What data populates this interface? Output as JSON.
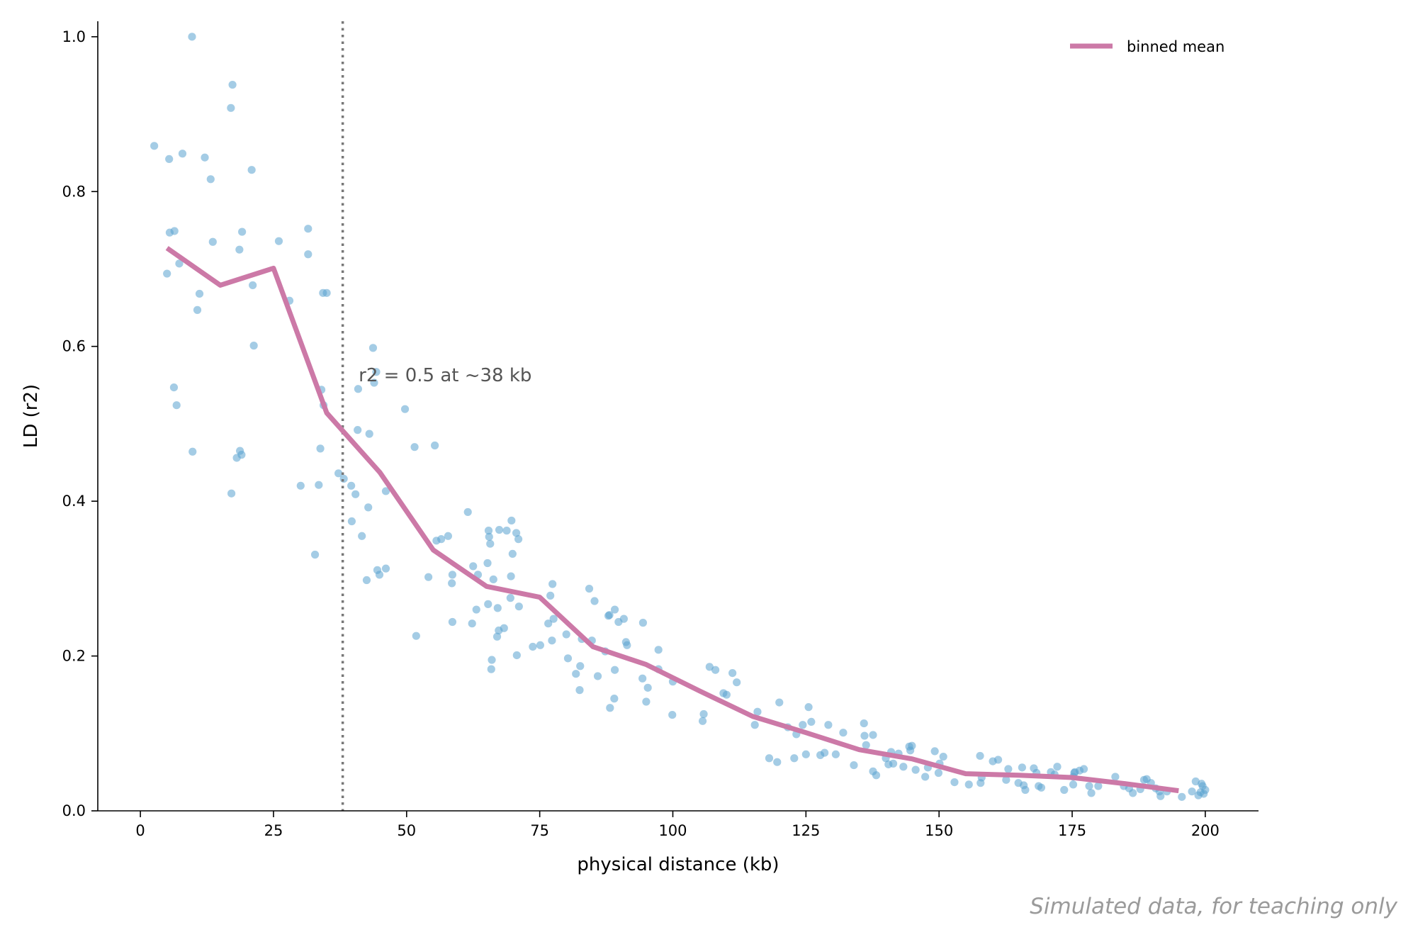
{
  "chart_data": {
    "type": "scatter",
    "title": "",
    "xlabel": "physical distance (kb)",
    "ylabel": "LD (r2)",
    "xlim": [
      -8,
      210
    ],
    "ylim": [
      0,
      1.02
    ],
    "x_ticks": [
      0,
      25,
      50,
      75,
      100,
      125,
      150,
      175,
      200
    ],
    "y_ticks": [
      0.0,
      0.2,
      0.4,
      0.6,
      0.8,
      1.0
    ],
    "x_tick_labels": [
      "0",
      "25",
      "50",
      "75",
      "100",
      "125",
      "150",
      "175",
      "200"
    ],
    "y_tick_labels": [
      "0.0",
      "0.2",
      "0.4",
      "0.6",
      "0.8",
      "1.0"
    ],
    "grid": false,
    "legend_position": "top-right",
    "colors": {
      "points": "#5aa3cf",
      "mean_line": "#cc79a7",
      "threshold_line": "#777777",
      "annotation": "#555555",
      "footer": "#9a9a9a"
    },
    "points": [
      [
        9.7,
        1.0
      ],
      [
        17.3,
        0.938
      ],
      [
        17.0,
        0.908
      ],
      [
        2.6,
        0.859
      ],
      [
        7.9,
        0.849
      ],
      [
        5.4,
        0.842
      ],
      [
        12.1,
        0.844
      ],
      [
        20.9,
        0.828
      ],
      [
        13.2,
        0.816
      ],
      [
        5.5,
        0.747
      ],
      [
        6.4,
        0.749
      ],
      [
        13.6,
        0.735
      ],
      [
        19.1,
        0.748
      ],
      [
        18.6,
        0.725
      ],
      [
        26.0,
        0.736
      ],
      [
        31.5,
        0.752
      ],
      [
        31.5,
        0.719
      ],
      [
        5.0,
        0.694
      ],
      [
        7.3,
        0.707
      ],
      [
        11.1,
        0.668
      ],
      [
        10.7,
        0.647
      ],
      [
        21.1,
        0.679
      ],
      [
        28.0,
        0.659
      ],
      [
        34.3,
        0.669
      ],
      [
        35.0,
        0.669
      ],
      [
        21.3,
        0.601
      ],
      [
        6.3,
        0.547
      ],
      [
        6.8,
        0.524
      ],
      [
        9.8,
        0.464
      ],
      [
        18.7,
        0.465
      ],
      [
        19.0,
        0.46
      ],
      [
        18.1,
        0.456
      ],
      [
        17.1,
        0.41
      ],
      [
        30.1,
        0.42
      ],
      [
        33.5,
        0.421
      ],
      [
        33.8,
        0.468
      ],
      [
        34.0,
        0.544
      ],
      [
        34.4,
        0.524
      ],
      [
        32.8,
        0.331
      ],
      [
        37.2,
        0.436
      ],
      [
        38.2,
        0.429
      ],
      [
        43.7,
        0.598
      ],
      [
        44.3,
        0.567
      ],
      [
        40.9,
        0.545
      ],
      [
        43.9,
        0.553
      ],
      [
        49.7,
        0.519
      ],
      [
        40.8,
        0.492
      ],
      [
        43.0,
        0.487
      ],
      [
        51.5,
        0.47
      ],
      [
        55.3,
        0.472
      ],
      [
        39.6,
        0.42
      ],
      [
        40.4,
        0.409
      ],
      [
        46.1,
        0.413
      ],
      [
        42.8,
        0.392
      ],
      [
        39.7,
        0.374
      ],
      [
        41.6,
        0.355
      ],
      [
        44.5,
        0.311
      ],
      [
        46.1,
        0.313
      ],
      [
        44.9,
        0.305
      ],
      [
        42.5,
        0.298
      ],
      [
        51.8,
        0.226
      ],
      [
        54.1,
        0.302
      ],
      [
        55.6,
        0.349
      ],
      [
        56.5,
        0.351
      ],
      [
        57.8,
        0.355
      ],
      [
        58.6,
        0.305
      ],
      [
        58.5,
        0.294
      ],
      [
        58.6,
        0.244
      ],
      [
        61.5,
        0.386
      ],
      [
        62.5,
        0.316
      ],
      [
        63.4,
        0.305
      ],
      [
        62.3,
        0.242
      ],
      [
        63.1,
        0.26
      ],
      [
        65.4,
        0.362
      ],
      [
        65.5,
        0.354
      ],
      [
        65.7,
        0.345
      ],
      [
        65.2,
        0.32
      ],
      [
        66.3,
        0.299
      ],
      [
        65.3,
        0.267
      ],
      [
        67.1,
        0.262
      ],
      [
        66.0,
        0.195
      ],
      [
        65.9,
        0.183
      ],
      [
        67.0,
        0.225
      ],
      [
        67.3,
        0.233
      ],
      [
        68.3,
        0.236
      ],
      [
        67.4,
        0.363
      ],
      [
        68.8,
        0.362
      ],
      [
        69.7,
        0.375
      ],
      [
        70.6,
        0.359
      ],
      [
        71.0,
        0.351
      ],
      [
        69.9,
        0.332
      ],
      [
        69.6,
        0.303
      ],
      [
        69.5,
        0.275
      ],
      [
        71.1,
        0.264
      ],
      [
        70.7,
        0.201
      ],
      [
        73.7,
        0.212
      ],
      [
        75.1,
        0.214
      ],
      [
        76.6,
        0.242
      ],
      [
        77.0,
        0.278
      ],
      [
        77.4,
        0.293
      ],
      [
        77.6,
        0.248
      ],
      [
        77.3,
        0.22
      ],
      [
        80.0,
        0.228
      ],
      [
        80.3,
        0.197
      ],
      [
        81.8,
        0.177
      ],
      [
        82.6,
        0.187
      ],
      [
        82.5,
        0.156
      ],
      [
        82.9,
        0.222
      ],
      [
        84.3,
        0.287
      ],
      [
        85.3,
        0.271
      ],
      [
        85.9,
        0.174
      ],
      [
        84.8,
        0.22
      ],
      [
        87.3,
        0.206
      ],
      [
        87.9,
        0.252
      ],
      [
        88.1,
        0.253
      ],
      [
        89.1,
        0.26
      ],
      [
        89.8,
        0.244
      ],
      [
        90.8,
        0.248
      ],
      [
        89.1,
        0.182
      ],
      [
        89.0,
        0.145
      ],
      [
        88.2,
        0.133
      ],
      [
        91.2,
        0.218
      ],
      [
        91.4,
        0.214
      ],
      [
        94.4,
        0.243
      ],
      [
        94.3,
        0.171
      ],
      [
        95.3,
        0.159
      ],
      [
        95.0,
        0.141
      ],
      [
        97.3,
        0.208
      ],
      [
        97.3,
        0.183
      ],
      [
        100.0,
        0.167
      ],
      [
        99.9,
        0.124
      ],
      [
        105.8,
        0.125
      ],
      [
        105.6,
        0.116
      ],
      [
        106.9,
        0.186
      ],
      [
        108.0,
        0.182
      ],
      [
        109.5,
        0.152
      ],
      [
        110.1,
        0.15
      ],
      [
        111.2,
        0.178
      ],
      [
        112.0,
        0.166
      ],
      [
        115.4,
        0.111
      ],
      [
        115.9,
        0.128
      ],
      [
        118.1,
        0.068
      ],
      [
        119.6,
        0.063
      ],
      [
        120.0,
        0.14
      ],
      [
        121.6,
        0.108
      ],
      [
        122.8,
        0.068
      ],
      [
        123.2,
        0.099
      ],
      [
        124.4,
        0.111
      ],
      [
        125.0,
        0.073
      ],
      [
        125.5,
        0.134
      ],
      [
        126.0,
        0.115
      ],
      [
        127.7,
        0.072
      ],
      [
        128.5,
        0.075
      ],
      [
        129.2,
        0.111
      ],
      [
        130.6,
        0.073
      ],
      [
        132.0,
        0.101
      ],
      [
        134.0,
        0.059
      ],
      [
        135.9,
        0.113
      ],
      [
        136.0,
        0.097
      ],
      [
        136.3,
        0.085
      ],
      [
        137.6,
        0.098
      ],
      [
        137.6,
        0.051
      ],
      [
        138.2,
        0.046
      ],
      [
        140.0,
        0.068
      ],
      [
        140.5,
        0.06
      ],
      [
        141.0,
        0.076
      ],
      [
        141.4,
        0.061
      ],
      [
        142.4,
        0.074
      ],
      [
        143.3,
        0.057
      ],
      [
        144.4,
        0.083
      ],
      [
        144.9,
        0.084
      ],
      [
        144.6,
        0.078
      ],
      [
        145.6,
        0.053
      ],
      [
        147.4,
        0.044
      ],
      [
        147.9,
        0.056
      ],
      [
        149.2,
        0.077
      ],
      [
        149.9,
        0.049
      ],
      [
        150.1,
        0.061
      ],
      [
        150.8,
        0.07
      ],
      [
        152.9,
        0.037
      ],
      [
        155.6,
        0.034
      ],
      [
        157.7,
        0.071
      ],
      [
        157.8,
        0.036
      ],
      [
        158.0,
        0.043
      ],
      [
        160.1,
        0.064
      ],
      [
        161.1,
        0.066
      ],
      [
        162.6,
        0.04
      ],
      [
        163.0,
        0.054
      ],
      [
        164.9,
        0.036
      ],
      [
        165.6,
        0.056
      ],
      [
        165.9,
        0.033
      ],
      [
        166.2,
        0.027
      ],
      [
        167.8,
        0.055
      ],
      [
        168.3,
        0.049
      ],
      [
        168.7,
        0.032
      ],
      [
        169.2,
        0.03
      ],
      [
        171.0,
        0.05
      ],
      [
        171.7,
        0.047
      ],
      [
        172.2,
        0.057
      ],
      [
        173.5,
        0.027
      ],
      [
        175.2,
        0.044
      ],
      [
        175.4,
        0.049
      ],
      [
        175.5,
        0.05
      ],
      [
        175.2,
        0.034
      ],
      [
        176.4,
        0.052
      ],
      [
        177.2,
        0.054
      ],
      [
        178.2,
        0.032
      ],
      [
        178.6,
        0.023
      ],
      [
        179.9,
        0.032
      ],
      [
        183.1,
        0.044
      ],
      [
        184.7,
        0.032
      ],
      [
        185.7,
        0.029
      ],
      [
        186.4,
        0.023
      ],
      [
        187.8,
        0.028
      ],
      [
        188.5,
        0.04
      ],
      [
        189.0,
        0.041
      ],
      [
        189.8,
        0.036
      ],
      [
        190.7,
        0.029
      ],
      [
        191.4,
        0.025
      ],
      [
        191.6,
        0.019
      ],
      [
        192.8,
        0.025
      ],
      [
        195.6,
        0.018
      ],
      [
        197.5,
        0.025
      ],
      [
        198.2,
        0.038
      ],
      [
        198.7,
        0.02
      ],
      [
        199.3,
        0.035
      ],
      [
        199.5,
        0.032
      ],
      [
        199.7,
        0.022
      ],
      [
        200.0,
        0.027
      ],
      [
        199.1,
        0.024
      ]
    ],
    "series": [
      {
        "name": "binned mean",
        "x": [
          5,
          15,
          25,
          35,
          45,
          55,
          65,
          75,
          85,
          95,
          105,
          115,
          125,
          135,
          145,
          155,
          165,
          175,
          185,
          195
        ],
        "values": [
          0.727,
          0.679,
          0.701,
          0.514,
          0.437,
          0.337,
          0.29,
          0.276,
          0.212,
          0.189,
          0.155,
          0.122,
          0.101,
          0.079,
          0.067,
          0.048,
          0.046,
          0.043,
          0.035,
          0.026
        ]
      }
    ],
    "threshold_x": 38,
    "annotation": "r2 = 0.5 at ~38 kb",
    "annotation_at": [
      41,
      0.555
    ]
  },
  "footer": {
    "note": "Simulated data, for teaching only"
  }
}
